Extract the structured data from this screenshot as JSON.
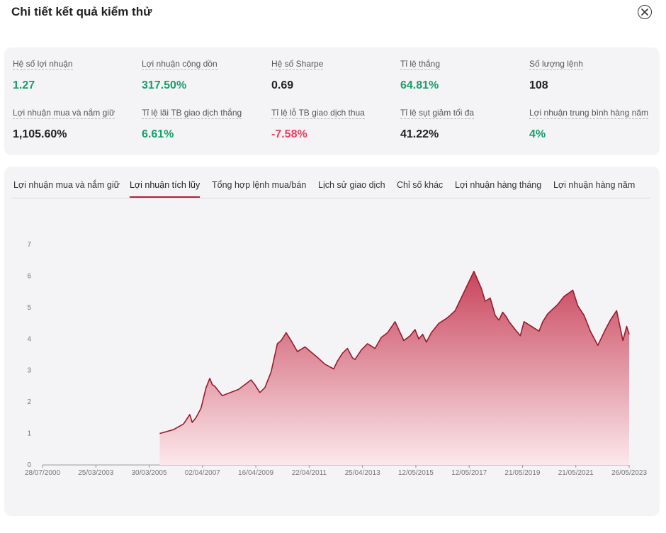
{
  "header": {
    "title": "Chi tiết kết quả kiểm thử"
  },
  "stats": [
    {
      "label": "Hệ số lợi nhuận",
      "value": "1.27",
      "color": "green"
    },
    {
      "label": "Lợi nhuận cộng dồn",
      "value": "317.50%",
      "color": "green"
    },
    {
      "label": "Hệ số Sharpe",
      "value": "0.69",
      "color": "dark"
    },
    {
      "label": "Tỉ lệ thắng",
      "value": "64.81%",
      "color": "green"
    },
    {
      "label": "Số lượng lệnh",
      "value": "108",
      "color": "dark"
    },
    {
      "label": "Lợi nhuận mua và nắm giữ",
      "value": "1,105.60%",
      "color": "dark"
    },
    {
      "label": "Tỉ lệ lãi TB giao dịch thắng",
      "value": "6.61%",
      "color": "green"
    },
    {
      "label": "Tỉ lệ lỗ TB giao dịch thua",
      "value": "-7.58%",
      "color": "red"
    },
    {
      "label": "Tỉ lệ sụt giảm tối đa",
      "value": "41.22%",
      "color": "dark"
    },
    {
      "label": "Lợi nhuận trung bình hàng năm",
      "value": "4%",
      "color": "green"
    }
  ],
  "tabs": [
    {
      "label": "Lợi nhuận mua và nắm giữ",
      "active": false
    },
    {
      "label": "Lợi nhuận tích lũy",
      "active": true
    },
    {
      "label": "Tổng hợp lệnh mua/bán",
      "active": false
    },
    {
      "label": "Lịch sử giao dịch",
      "active": false
    },
    {
      "label": "Chỉ số khác",
      "active": false
    },
    {
      "label": "Lợi nhuận hàng tháng",
      "active": false
    },
    {
      "label": "Lợi nhuận hàng năm",
      "active": false
    }
  ],
  "colors": {
    "line": "#9b1a2b",
    "fill_top": "#c8455c",
    "fill_bottom": "#fce8ec",
    "active_tab": "#b3203a"
  },
  "chart_data": {
    "type": "area",
    "x_ticks": [
      "28/07/2000",
      "25/03/2003",
      "30/03/2005",
      "02/04/2007",
      "16/04/2009",
      "22/04/2011",
      "25/04/2013",
      "12/05/2015",
      "12/05/2017",
      "21/05/2019",
      "21/05/2021",
      "26/05/2023"
    ],
    "y_ticks": [
      0,
      1,
      2,
      3,
      4,
      5,
      6,
      7
    ],
    "ylim": [
      0,
      7
    ],
    "x_range": [
      2000.57,
      2024.0
    ],
    "series": [
      {
        "x": [
          2005.25,
          2005.8,
          2006.2,
          2006.45,
          2006.55,
          2006.7,
          2006.9,
          2007.1,
          2007.25,
          2007.35,
          2007.45,
          2007.6,
          2007.75,
          2008.4,
          2008.9,
          2009.05,
          2009.25,
          2009.45,
          2009.7,
          2009.95,
          2010.1,
          2010.3,
          2010.5,
          2010.75,
          2011.05,
          2011.5,
          2011.85,
          2012.2,
          2012.35,
          2012.55,
          2012.75,
          2012.95,
          2013.05,
          2013.3,
          2013.55,
          2013.85,
          2014.1,
          2014.35,
          2014.65,
          2015.0,
          2015.25,
          2015.45,
          2015.6,
          2015.75,
          2015.9,
          2016.1,
          2016.4,
          2016.7,
          2016.85,
          2017.05,
          2017.35,
          2017.8,
          2018.1,
          2018.25,
          2018.45,
          2018.65,
          2018.8,
          2018.95,
          2019.1,
          2019.2,
          2019.45,
          2019.65,
          2019.8,
          2020.4,
          2020.55,
          2020.75,
          2020.95,
          2021.15,
          2021.4,
          2021.75,
          2021.95,
          2022.2,
          2022.45,
          2022.75,
          2023.05,
          2023.25,
          2023.5,
          2023.75,
          2023.9,
          2024.0
        ],
        "y": [
          1.0,
          1.12,
          1.3,
          1.6,
          1.35,
          1.5,
          1.8,
          2.45,
          2.75,
          2.55,
          2.5,
          2.35,
          2.2,
          2.4,
          2.7,
          2.55,
          2.3,
          2.45,
          2.95,
          3.85,
          3.95,
          4.2,
          3.95,
          3.6,
          3.75,
          3.45,
          3.2,
          3.05,
          3.3,
          3.55,
          3.7,
          3.4,
          3.35,
          3.65,
          3.85,
          3.7,
          4.05,
          4.2,
          4.55,
          3.95,
          4.1,
          4.3,
          4.0,
          4.15,
          3.9,
          4.2,
          4.5,
          4.65,
          4.75,
          4.9,
          5.4,
          6.15,
          5.6,
          5.2,
          5.3,
          4.75,
          4.6,
          4.85,
          4.7,
          4.55,
          4.3,
          4.1,
          4.55,
          4.25,
          4.55,
          4.8,
          4.95,
          5.1,
          5.35,
          5.55,
          5.05,
          4.75,
          4.25,
          3.8,
          4.3,
          4.6,
          4.9,
          3.95,
          4.4,
          4.15
        ]
      }
    ]
  }
}
